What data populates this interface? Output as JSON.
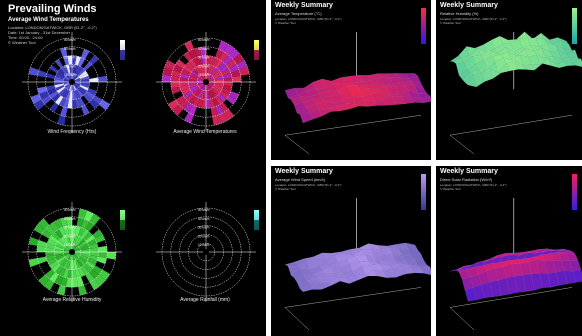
{
  "left_panel": {
    "title": "Prevailing Winds",
    "subtitle": "Average Wind Temperatures",
    "meta": [
      "Location: LONDON/GATWICK, GBR (51.2°, -0.2°)",
      "Date: 1st January - 31st December",
      "Time: 00:00 - 24:00",
      "© Weather Tool"
    ],
    "ring_labels": [
      "50 km/h",
      "40 km/h",
      "30 km/h",
      "20 km/h",
      "10 km/h"
    ],
    "charts": [
      {
        "caption": "Wind Frequency (Hrs)",
        "scheme": "blue"
      },
      {
        "caption": "Average Wind Temperatures",
        "scheme": "red"
      },
      {
        "caption": "Average Relative Humidity",
        "scheme": "green"
      },
      {
        "caption": "Average Rainfall (mm)",
        "scheme": "empty"
      }
    ]
  },
  "tiles": [
    {
      "title": "Weekly Summary",
      "subtitle": "Average Temperature (°C)",
      "meta": "Location: LONDON/GATWICK, GBR (51.2°, -0.2°)",
      "credit": "© Weather Tool",
      "scheme": "temp"
    },
    {
      "title": "Weekly Summary",
      "subtitle": "Relative Humidity (%)",
      "meta": "Location: LONDON/GATWICK, GBR (51.2°, -0.2°)",
      "credit": "© Weather Tool",
      "scheme": "humidity"
    },
    {
      "title": "Weekly Summary",
      "subtitle": "Average Wind Speed (km/h)",
      "meta": "Location: LONDON/GATWICK, GBR (51.2°, -0.2°)",
      "credit": "© Weather Tool",
      "scheme": "wind"
    },
    {
      "title": "Weekly Summary",
      "subtitle": "Direct Solar Radiation (W/m²)",
      "meta": "Location: LONDON/GATWICK, GBR (51.2°, -0.2°)",
      "credit": "© Weather Tool",
      "scheme": "solar"
    }
  ],
  "colors": {
    "background": "#000000",
    "blue": "#3a3ad8",
    "red": "#c8206a",
    "green": "#3cc83c",
    "cyan": "#20c8b0"
  }
}
